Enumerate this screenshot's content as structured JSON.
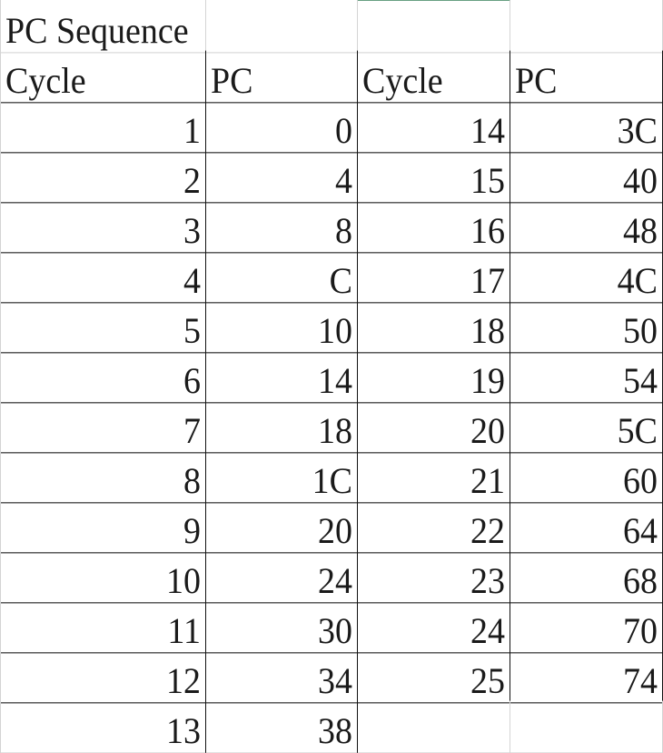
{
  "sheet": {
    "title": "PC Sequence",
    "headers": [
      "Cycle",
      "PC",
      "Cycle",
      "PC"
    ],
    "rows": [
      [
        "1",
        "0",
        "14",
        "3C"
      ],
      [
        "2",
        "4",
        "15",
        "40"
      ],
      [
        "3",
        "8",
        "16",
        "48"
      ],
      [
        "4",
        "C",
        "17",
        "4C"
      ],
      [
        "5",
        "10",
        "18",
        "50"
      ],
      [
        "6",
        "14",
        "19",
        "54"
      ],
      [
        "7",
        "18",
        "20",
        "5C"
      ],
      [
        "8",
        "1C",
        "21",
        "60"
      ],
      [
        "9",
        "20",
        "22",
        "64"
      ],
      [
        "10",
        "24",
        "23",
        "68"
      ],
      [
        "11",
        "30",
        "24",
        "70"
      ],
      [
        "12",
        "34",
        "25",
        "74"
      ],
      [
        "13",
        "38",
        "",
        ""
      ]
    ]
  },
  "colors": {
    "active_column_indicator": "#217346",
    "gridline": "#d4d4d4",
    "data_border": "#111111"
  }
}
